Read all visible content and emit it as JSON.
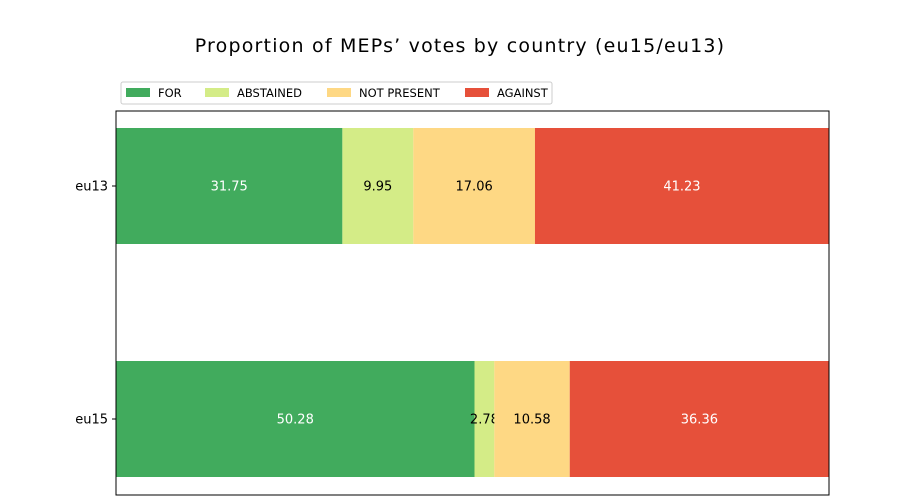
{
  "chart_data": {
    "type": "bar",
    "orientation": "horizontal",
    "stacked": true,
    "title": "Proportion of MEPs’ votes by country (eu15/eu13)",
    "xlabel": "",
    "ylabel": "",
    "categories": [
      "eu13",
      "eu15"
    ],
    "xlim": [
      0,
      100
    ],
    "grid": false,
    "legend_position": "top-left",
    "series": [
      {
        "name": "FOR",
        "color": "#41ab5d",
        "label_color": "#ffffff",
        "values": [
          31.75,
          50.28
        ]
      },
      {
        "name": "ABSTAINED",
        "color": "#d4ec87",
        "label_color": "#000000",
        "values": [
          9.95,
          2.78
        ]
      },
      {
        "name": "NOT PRESENT",
        "color": "#fed884",
        "label_color": "#000000",
        "values": [
          17.06,
          10.58
        ]
      },
      {
        "name": "AGAINST",
        "color": "#e6503a",
        "label_color": "#ffffff",
        "values": [
          41.23,
          36.36
        ]
      }
    ]
  }
}
